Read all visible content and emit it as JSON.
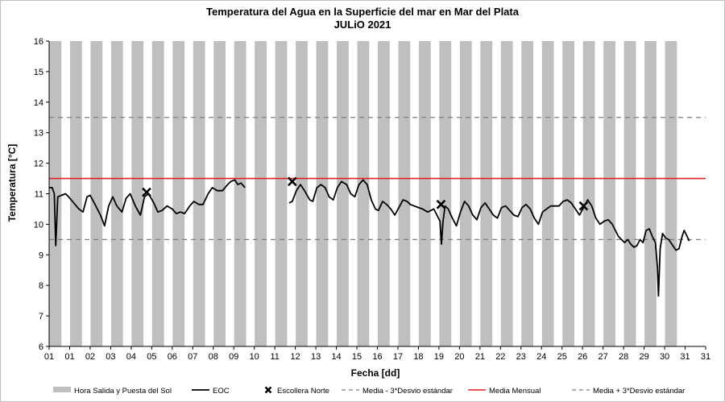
{
  "chart_data": {
    "type": "line",
    "title": "Temperatura del Agua en la Superficie del mar en Mar del Plata",
    "subtitle": "JULiO 2021",
    "xlabel": "Fecha [dd]",
    "ylabel": "Temperatura [°C]",
    "ylim": [
      6,
      16
    ],
    "yticks": [
      6,
      7,
      8,
      9,
      10,
      11,
      12,
      13,
      14,
      15,
      16
    ],
    "xtick_labels": [
      "01",
      "01",
      "02",
      "03",
      "04",
      "05",
      "06",
      "07",
      "08",
      "09",
      "10",
      "11",
      "12",
      "13",
      "14",
      "15",
      "16",
      "17",
      "18",
      "19",
      "20",
      "21",
      "22",
      "23",
      "24",
      "25",
      "26",
      "27",
      "28",
      "29",
      "30",
      "31",
      "31"
    ],
    "grid": false,
    "legend_position": "bottom",
    "legend": [
      {
        "label": "Hora Salida y Puesta del Sol",
        "kind": "bar"
      },
      {
        "label": "EOC",
        "kind": "line"
      },
      {
        "label": "Escollera Norte",
        "kind": "marker"
      },
      {
        "label": "Media - 3*Desvio estándar",
        "kind": "dash"
      },
      {
        "label": "Media Mensual",
        "kind": "redline"
      },
      {
        "label": "Media + 3*Desvio estándar",
        "kind": "dash"
      }
    ],
    "night_bars_fill_color": "#bfbfbf",
    "night_bars_days": [
      1,
      2,
      3,
      4,
      5,
      6,
      7,
      8,
      9,
      10,
      11,
      12,
      13,
      14,
      15,
      16,
      17,
      18,
      19,
      20,
      21,
      22,
      23,
      24,
      25,
      26,
      27,
      28,
      29,
      30,
      31
    ],
    "reference_lines": {
      "media_mensual": 11.5,
      "media_menos_3desvio": 9.5,
      "media_mas_3desvio": 13.5
    },
    "colors": {
      "eoc": "#000000",
      "media": "#e02020",
      "desvio": "#7f7f7f"
    },
    "eoc_segments": [
      [
        [
          1.0,
          11.2
        ],
        [
          1.15,
          11.2
        ],
        [
          1.25,
          11.0
        ],
        [
          1.32,
          9.3
        ],
        [
          1.42,
          10.9
        ],
        [
          1.6,
          10.95
        ],
        [
          1.8,
          11.0
        ],
        [
          1.95,
          10.9
        ],
        [
          2.2,
          10.7
        ],
        [
          2.45,
          10.5
        ],
        [
          2.65,
          10.4
        ],
        [
          2.85,
          10.9
        ],
        [
          3.0,
          10.95
        ],
        [
          3.2,
          10.7
        ],
        [
          3.5,
          10.3
        ],
        [
          3.7,
          9.95
        ],
        [
          3.9,
          10.6
        ],
        [
          4.1,
          10.9
        ],
        [
          4.3,
          10.6
        ],
        [
          4.55,
          10.4
        ],
        [
          4.75,
          10.85
        ],
        [
          4.95,
          11.0
        ],
        [
          5.2,
          10.6
        ],
        [
          5.45,
          10.3
        ],
        [
          5.65,
          10.9
        ],
        [
          5.85,
          11.0
        ],
        [
          6.1,
          10.7
        ],
        [
          6.3,
          10.4
        ],
        [
          6.5,
          10.45
        ],
        [
          6.75,
          10.6
        ],
        [
          7.0,
          10.5
        ],
        [
          7.2,
          10.35
        ],
        [
          7.4,
          10.4
        ],
        [
          7.6,
          10.35
        ],
        [
          7.85,
          10.6
        ],
        [
          8.05,
          10.75
        ],
        [
          8.3,
          10.65
        ],
        [
          8.5,
          10.65
        ],
        [
          8.75,
          11.0
        ],
        [
          8.95,
          11.2
        ],
        [
          9.2,
          11.1
        ],
        [
          9.45,
          11.1
        ],
        [
          9.7,
          11.3
        ],
        [
          9.85,
          11.4
        ],
        [
          10.05,
          11.45
        ],
        [
          10.2,
          11.3
        ],
        [
          10.35,
          11.35
        ],
        [
          10.55,
          11.2
        ]
      ],
      [
        [
          12.7,
          10.7
        ],
        [
          12.85,
          10.75
        ],
        [
          13.05,
          11.1
        ],
        [
          13.25,
          11.3
        ],
        [
          13.45,
          11.1
        ],
        [
          13.7,
          10.8
        ],
        [
          13.85,
          10.75
        ],
        [
          14.05,
          11.2
        ],
        [
          14.25,
          11.3
        ],
        [
          14.45,
          11.2
        ],
        [
          14.65,
          10.9
        ],
        [
          14.85,
          10.8
        ],
        [
          15.05,
          11.2
        ],
        [
          15.25,
          11.4
        ],
        [
          15.5,
          11.3
        ],
        [
          15.7,
          11.0
        ],
        [
          15.9,
          10.9
        ],
        [
          16.1,
          11.3
        ],
        [
          16.3,
          11.45
        ],
        [
          16.5,
          11.3
        ],
        [
          16.7,
          10.8
        ],
        [
          16.9,
          10.5
        ],
        [
          17.05,
          10.45
        ],
        [
          17.25,
          10.75
        ],
        [
          17.45,
          10.65
        ],
        [
          17.65,
          10.5
        ],
        [
          17.85,
          10.3
        ],
        [
          18.05,
          10.55
        ],
        [
          18.25,
          10.8
        ],
        [
          18.45,
          10.75
        ],
        [
          18.6,
          10.65
        ],
        [
          18.8,
          10.6
        ],
        [
          19.0,
          10.55
        ],
        [
          19.2,
          10.5
        ],
        [
          19.45,
          10.4
        ],
        [
          19.6,
          10.45
        ],
        [
          19.75,
          10.5
        ],
        [
          19.9,
          10.3
        ],
        [
          20.05,
          10.1
        ],
        [
          20.12,
          9.35
        ],
        [
          20.2,
          10.1
        ],
        [
          20.3,
          10.6
        ],
        [
          20.45,
          10.5
        ],
        [
          20.65,
          10.2
        ],
        [
          20.85,
          9.95
        ],
        [
          21.05,
          10.4
        ],
        [
          21.25,
          10.75
        ],
        [
          21.45,
          10.6
        ],
        [
          21.65,
          10.3
        ],
        [
          21.85,
          10.15
        ],
        [
          22.05,
          10.55
        ],
        [
          22.25,
          10.7
        ],
        [
          22.45,
          10.5
        ],
        [
          22.65,
          10.3
        ],
        [
          22.85,
          10.2
        ],
        [
          23.05,
          10.55
        ],
        [
          23.25,
          10.6
        ],
        [
          23.45,
          10.45
        ],
        [
          23.65,
          10.3
        ],
        [
          23.85,
          10.25
        ],
        [
          24.05,
          10.55
        ],
        [
          24.25,
          10.65
        ],
        [
          24.45,
          10.5
        ],
        [
          24.65,
          10.2
        ],
        [
          24.85,
          10.0
        ],
        [
          25.05,
          10.4
        ],
        [
          25.25,
          10.5
        ],
        [
          25.45,
          10.6
        ],
        [
          25.65,
          10.6
        ],
        [
          25.85,
          10.6
        ],
        [
          26.05,
          10.75
        ],
        [
          26.25,
          10.8
        ],
        [
          26.45,
          10.7
        ],
        [
          26.65,
          10.5
        ],
        [
          26.85,
          10.3
        ],
        [
          27.05,
          10.55
        ],
        [
          27.25,
          10.8
        ],
        [
          27.45,
          10.6
        ],
        [
          27.65,
          10.2
        ],
        [
          27.85,
          10.0
        ],
        [
          28.05,
          10.1
        ],
        [
          28.25,
          10.15
        ],
        [
          28.45,
          10.0
        ],
        [
          28.6,
          9.8
        ],
        [
          28.75,
          9.6
        ],
        [
          28.9,
          9.5
        ],
        [
          29.05,
          9.4
        ],
        [
          29.2,
          9.5
        ],
        [
          29.35,
          9.35
        ],
        [
          29.5,
          9.25
        ],
        [
          29.65,
          9.3
        ],
        [
          29.8,
          9.5
        ],
        [
          29.95,
          9.4
        ],
        [
          30.1,
          9.8
        ],
        [
          30.25,
          9.85
        ],
        [
          30.4,
          9.6
        ],
        [
          30.55,
          9.4
        ],
        [
          30.65,
          8.6
        ],
        [
          30.7,
          7.65
        ],
        [
          30.78,
          9.2
        ],
        [
          30.9,
          9.7
        ],
        [
          31.05,
          9.55
        ],
        [
          31.2,
          9.5
        ],
        [
          31.4,
          9.3
        ],
        [
          31.55,
          9.15
        ],
        [
          31.7,
          9.2
        ],
        [
          31.85,
          9.6
        ],
        [
          31.95,
          9.8
        ],
        [
          32.1,
          9.6
        ],
        [
          32.2,
          9.45
        ]
      ]
    ],
    "escollera_norte": [
      [
        5.75,
        11.05
      ],
      [
        12.85,
        11.4
      ],
      [
        20.1,
        10.65
      ],
      [
        27.05,
        10.6
      ]
    ]
  }
}
